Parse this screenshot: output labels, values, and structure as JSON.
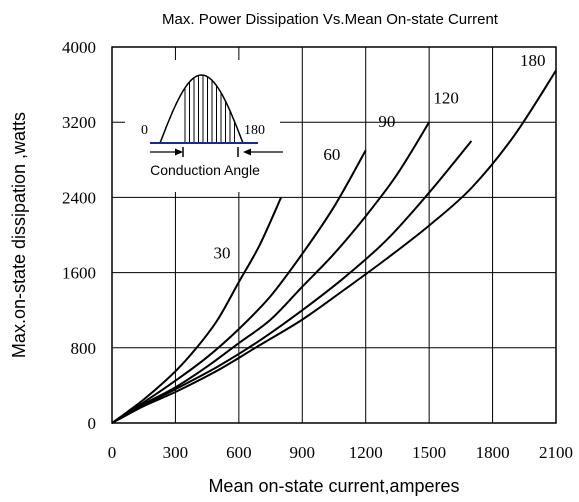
{
  "chart_data": {
    "type": "line",
    "title": "Max. Power Dissipation Vs.Mean On-state Current",
    "xlabel": "Mean on-state current,amperes",
    "ylabel": "Max.on-state dissipation ,watts",
    "xlim": [
      0,
      2100
    ],
    "ylim": [
      0,
      4000
    ],
    "xticks": [
      0,
      300,
      600,
      900,
      1200,
      1500,
      1800,
      2100
    ],
    "yticks": [
      0,
      800,
      1600,
      2400,
      3200,
      4000
    ],
    "xtick_labels": [
      "0",
      "300",
      "600",
      "900",
      "1200",
      "1500",
      "1800",
      "2100"
    ],
    "ytick_labels": [
      "0",
      "800",
      "1600",
      "2400",
      "3200",
      "4000"
    ],
    "grid": true,
    "series": [
      {
        "name": "30",
        "x": [
          0,
          150,
          300,
          400,
          500,
          600,
          700,
          800
        ],
        "y": [
          0,
          250,
          550,
          800,
          1100,
          1500,
          1900,
          2400
        ]
      },
      {
        "name": "60",
        "x": [
          0,
          150,
          300,
          450,
          600,
          750,
          900,
          1050,
          1200
        ],
        "y": [
          0,
          220,
          450,
          700,
          1000,
          1350,
          1800,
          2300,
          2900
        ]
      },
      {
        "name": "90",
        "x": [
          0,
          150,
          300,
          450,
          600,
          750,
          900,
          1050,
          1200,
          1350,
          1500
        ],
        "y": [
          0,
          200,
          380,
          600,
          850,
          1100,
          1450,
          1800,
          2200,
          2650,
          3200
        ]
      },
      {
        "name": "120",
        "x": [
          0,
          150,
          300,
          500,
          700,
          900,
          1100,
          1300,
          1500,
          1700
        ],
        "y": [
          0,
          190,
          360,
          600,
          880,
          1200,
          1550,
          1950,
          2450,
          3000
        ]
      },
      {
        "name": "180",
        "x": [
          0,
          150,
          300,
          500,
          700,
          900,
          1100,
          1300,
          1500,
          1700,
          1900,
          2100
        ],
        "y": [
          0,
          180,
          330,
          560,
          830,
          1100,
          1420,
          1750,
          2100,
          2500,
          3050,
          3750
        ]
      }
    ],
    "inset": {
      "caption": "Conduction Angle",
      "left_label": "0",
      "right_label": "180"
    }
  }
}
